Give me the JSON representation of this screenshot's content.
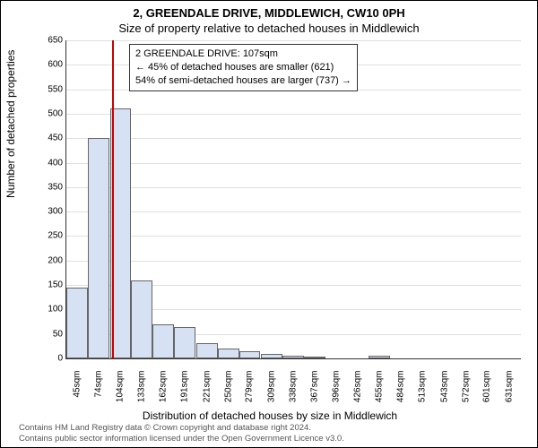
{
  "titles": {
    "line1": "2, GREENDALE DRIVE, MIDDLEWICH, CW10 0PH",
    "line2": "Size of property relative to detached houses in Middlewich"
  },
  "chart": {
    "type": "histogram",
    "ylabel": "Number of detached properties",
    "xlabel": "Distribution of detached houses by size in Middlewich",
    "ylim": [
      0,
      650
    ],
    "ytick_step": 50,
    "background_color": "#ffffff",
    "grid_color": "rgba(0,0,0,0.12)",
    "bar_fill": "#d6e1f4",
    "bar_border": "#666666",
    "marker_color": "#cc0000",
    "marker_x": 107,
    "x_categories": [
      "45sqm",
      "74sqm",
      "104sqm",
      "133sqm",
      "162sqm",
      "191sqm",
      "221sqm",
      "250sqm",
      "279sqm",
      "309sqm",
      "338sqm",
      "367sqm",
      "396sqm",
      "426sqm",
      "455sqm",
      "484sqm",
      "513sqm",
      "543sqm",
      "572sqm",
      "601sqm",
      "631sqm"
    ],
    "bins": [
      {
        "x": 45,
        "v": 145
      },
      {
        "x": 74,
        "v": 450
      },
      {
        "x": 104,
        "v": 510
      },
      {
        "x": 133,
        "v": 160
      },
      {
        "x": 162,
        "v": 70
      },
      {
        "x": 191,
        "v": 65
      },
      {
        "x": 221,
        "v": 32
      },
      {
        "x": 250,
        "v": 20
      },
      {
        "x": 279,
        "v": 14
      },
      {
        "x": 309,
        "v": 10
      },
      {
        "x": 338,
        "v": 6
      },
      {
        "x": 367,
        "v": 4
      },
      {
        "x": 396,
        "v": 0
      },
      {
        "x": 426,
        "v": 0
      },
      {
        "x": 455,
        "v": 6
      },
      {
        "x": 484,
        "v": 0
      },
      {
        "x": 513,
        "v": 0
      },
      {
        "x": 543,
        "v": 0
      },
      {
        "x": 572,
        "v": 0
      },
      {
        "x": 601,
        "v": 0
      },
      {
        "x": 631,
        "v": 0
      }
    ],
    "bin_width": 29
  },
  "annotation": {
    "lines": [
      "2 GREENDALE DRIVE: 107sqm",
      "← 45% of detached houses are smaller (621)",
      "54% of semi-detached houses are larger (737) →"
    ]
  },
  "caption": {
    "line1": "Contains HM Land Registry data © Crown copyright and database right 2024.",
    "line2": "Contains public sector information licensed under the Open Government Licence v3.0."
  }
}
